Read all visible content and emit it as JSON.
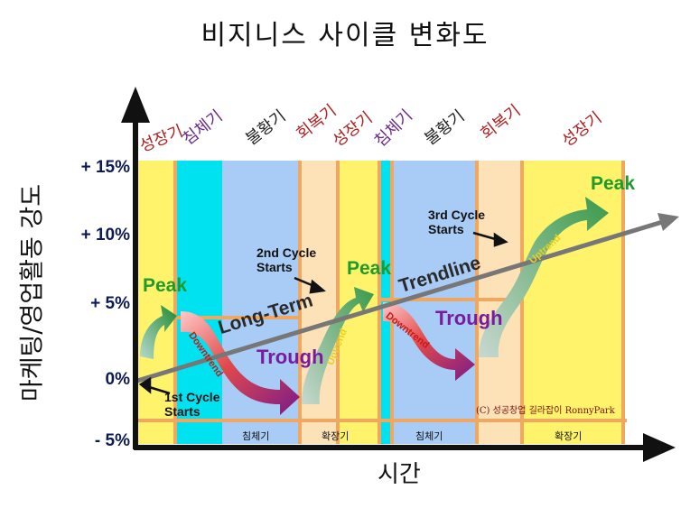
{
  "title": "비지니스 사이클 변화도",
  "y_axis_label": "마케팅/영업활동 강도",
  "x_axis_label": "시간",
  "y_ticks": [
    "+ 15%",
    "+ 10%",
    "+ 5%",
    "0%",
    "- 5%"
  ],
  "phases_top": [
    {
      "label": "성장기",
      "color": "#b12020"
    },
    {
      "label": "침체기",
      "color": "#6a2a8a"
    },
    {
      "label": "불황기",
      "color": "#222222"
    },
    {
      "label": "회복기",
      "color": "#b12020"
    },
    {
      "label": "성장기",
      "color": "#b12020"
    },
    {
      "label": "침체기",
      "color": "#6a2a8a"
    },
    {
      "label": "불황기",
      "color": "#222222"
    },
    {
      "label": "회복기",
      "color": "#b12020"
    },
    {
      "label": "성장기",
      "color": "#b12020"
    }
  ],
  "bottom_bands": [
    "침체기",
    "확장기",
    "침체기",
    "확장기"
  ],
  "annotations": {
    "peak": "Peak",
    "trough": "Trough",
    "downtrend": "Downtrend",
    "uptrend": "Uptrend",
    "long_term": "Long-Term",
    "trendline": "Trendline"
  },
  "cycle_notes": [
    {
      "line1": "1st Cycle",
      "line2": "Starts"
    },
    {
      "line1": "2nd Cycle",
      "line2": "Starts"
    },
    {
      "line1": "3rd Cycle",
      "line2": "Starts"
    }
  ],
  "copyright": "(C) 성공창업 길라잡이  RonnyPark",
  "colors": {
    "growth": "#fff36b",
    "recession": "#00e2f0",
    "depression": "#a8ccf5",
    "recovery": "#fde2b8",
    "divider": "#f0a860",
    "peak": "#1e9b2a",
    "trough": "#7a1aa0",
    "trendline": "#777777"
  }
}
